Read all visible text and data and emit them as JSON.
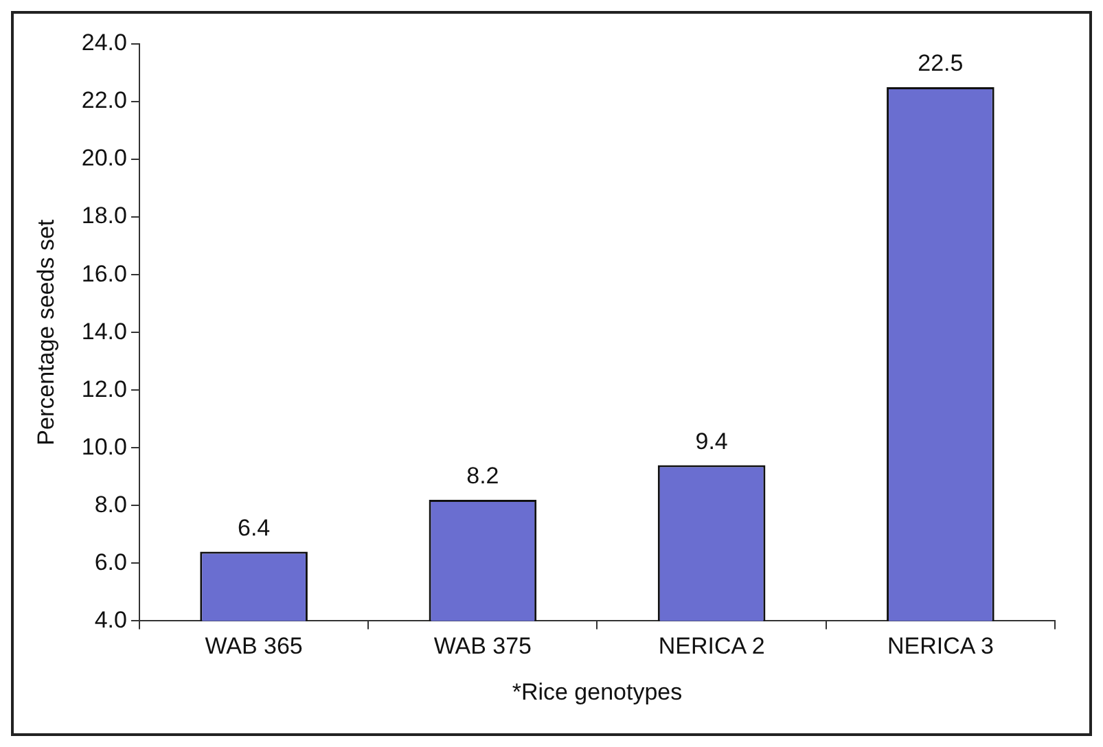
{
  "chart_data": {
    "type": "bar",
    "xlabel": "*Rice genotypes",
    "ylabel": "Percentage seeds set",
    "categories": [
      "WAB 365",
      "WAB 375",
      "NERICA 2",
      "NERICA 3"
    ],
    "values": [
      6.4,
      8.2,
      9.4,
      22.5
    ],
    "color": "#6a6ed0",
    "ylim": [
      4,
      24
    ],
    "yticks": [
      {
        "value": 4,
        "label": "4.0"
      },
      {
        "value": 6,
        "label": "6.0"
      },
      {
        "value": 8,
        "label": "8.0"
      },
      {
        "value": 10,
        "label": "10.0"
      },
      {
        "value": 12,
        "label": "12.0"
      },
      {
        "value": 14,
        "label": "14.0"
      },
      {
        "value": 16,
        "label": "16.0"
      },
      {
        "value": 18,
        "label": "18.0"
      },
      {
        "value": 20,
        "label": "20.0"
      },
      {
        "value": 22,
        "label": "22.0"
      },
      {
        "value": 24,
        "label": "24.0"
      }
    ],
    "grid": false,
    "legend": false,
    "data_labels": true
  }
}
